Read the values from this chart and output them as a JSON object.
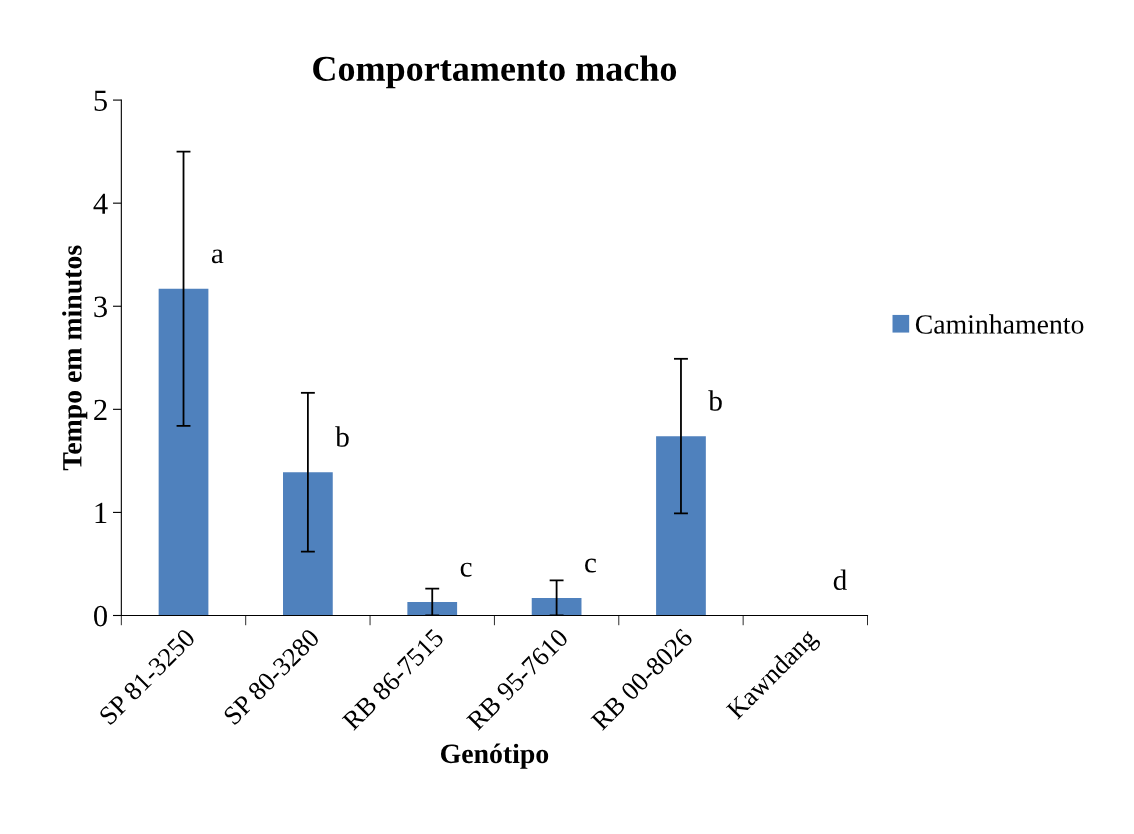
{
  "chart_data": {
    "type": "bar",
    "title": "Comportamento macho",
    "xlabel": "Genótipo",
    "ylabel": "Tempo em minutos",
    "categories": [
      "SP 81-3250",
      "SP 80-3280",
      "RB 86-7515",
      "RB 95-7610",
      "RB 00-8026",
      "Kawndang"
    ],
    "series": [
      {
        "name": "Caminhamento",
        "color": "#4f81bd",
        "values": [
          3.17,
          1.39,
          0.13,
          0.17,
          1.74,
          0
        ],
        "errors": [
          1.33,
          0.77,
          0.13,
          0.17,
          0.75,
          null
        ]
      }
    ],
    "ylim": [
      0,
      5
    ],
    "yticks": [
      0,
      1,
      2,
      3,
      4,
      5
    ],
    "grid": false,
    "legend": "right",
    "annotations": [
      "a",
      "b",
      "c",
      "c",
      "b",
      "d"
    ]
  }
}
